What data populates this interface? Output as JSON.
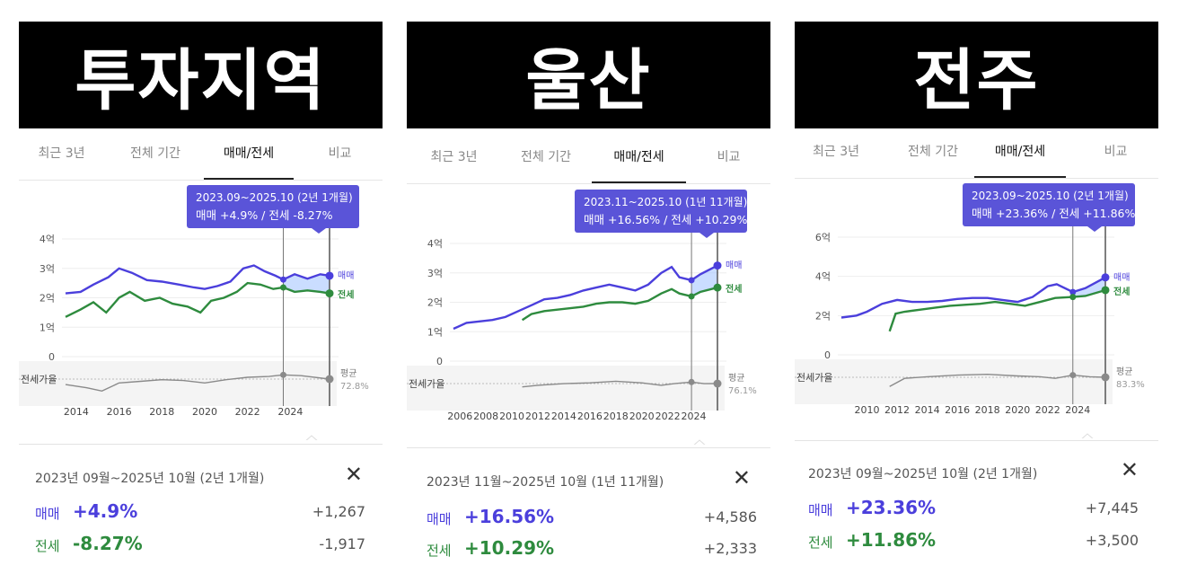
{
  "tabs": [
    "최근 3년",
    "전체 기간",
    "매매/전세",
    "비교"
  ],
  "active_tab": 2,
  "panels": [
    {
      "banner": "투자지역",
      "tooltip_line1": "2023.09~2025.10 (2년 1개월)",
      "tooltip_line2": "매매 +4.9%  /  전세 -8.27%",
      "summary": {
        "period": "2023년 09월~2025년 10월 (2년 1개월)",
        "sale_label": "매매",
        "sale_pct": "+4.9%",
        "sale_amt": "+1,267",
        "jeonse_label": "전세",
        "jeonse_pct": "-8.27%",
        "jeonse_amt": "-1,917"
      },
      "chart_data": {
        "type": "line",
        "xlabel": "",
        "ylabel": "",
        "x_ticks": [
          "2014",
          "2016",
          "2018",
          "2020",
          "2022",
          "2024"
        ],
        "y_ticks": [
          "4억",
          "3억",
          "2억",
          "1억",
          "0"
        ],
        "ylim": [
          0,
          4
        ],
        "x_range": [
          2013.5,
          2025.83
        ],
        "series": [
          {
            "name": "매매",
            "color": "#4b3fdc",
            "points": [
              [
                2013.5,
                2.15
              ],
              [
                2014.2,
                2.2
              ],
              [
                2014.8,
                2.45
              ],
              [
                2015.5,
                2.7
              ],
              [
                2016.0,
                3.0
              ],
              [
                2016.6,
                2.85
              ],
              [
                2017.3,
                2.6
              ],
              [
                2018.0,
                2.55
              ],
              [
                2018.8,
                2.45
              ],
              [
                2019.5,
                2.35
              ],
              [
                2020.0,
                2.3
              ],
              [
                2020.6,
                2.4
              ],
              [
                2021.2,
                2.55
              ],
              [
                2021.8,
                3.0
              ],
              [
                2022.3,
                3.1
              ],
              [
                2022.8,
                2.9
              ],
              [
                2023.3,
                2.75
              ],
              [
                2023.67,
                2.62
              ],
              [
                2024.2,
                2.8
              ],
              [
                2024.8,
                2.65
              ],
              [
                2025.4,
                2.8
              ],
              [
                2025.83,
                2.75
              ]
            ]
          },
          {
            "name": "전세",
            "color": "#2e8b3e",
            "points": [
              [
                2013.5,
                1.35
              ],
              [
                2014.2,
                1.6
              ],
              [
                2014.8,
                1.85
              ],
              [
                2015.4,
                1.5
              ],
              [
                2016.0,
                2.0
              ],
              [
                2016.5,
                2.2
              ],
              [
                2017.2,
                1.9
              ],
              [
                2017.9,
                2.0
              ],
              [
                2018.5,
                1.8
              ],
              [
                2019.2,
                1.7
              ],
              [
                2019.8,
                1.5
              ],
              [
                2020.3,
                1.9
              ],
              [
                2020.9,
                2.0
              ],
              [
                2021.5,
                2.2
              ],
              [
                2022.0,
                2.5
              ],
              [
                2022.6,
                2.45
              ],
              [
                2023.2,
                2.3
              ],
              [
                2023.67,
                2.35
              ],
              [
                2024.2,
                2.2
              ],
              [
                2024.8,
                2.25
              ],
              [
                2025.4,
                2.2
              ],
              [
                2025.83,
                2.15
              ]
            ]
          },
          {
            "name": "전세가율",
            "points": [
              [
                2013.5,
                66
              ],
              [
                2014.5,
                62
              ],
              [
                2015.2,
                58
              ],
              [
                2016.0,
                68
              ],
              [
                2017.0,
                70
              ],
              [
                2018.0,
                72
              ],
              [
                2019.0,
                71
              ],
              [
                2020.0,
                68
              ],
              [
                2021.0,
                72
              ],
              [
                2022.0,
                75
              ],
              [
                2023.0,
                76
              ],
              [
                2023.67,
                78
              ],
              [
                2024.5,
                77
              ],
              [
                2025.83,
                72.8
              ]
            ]
          }
        ],
        "ratio_label": "전세가율",
        "avg_label": "평균",
        "avg_value": "72.8%",
        "selection": [
          2023.67,
          2025.83
        ],
        "end_labels": [
          "매매",
          "전세"
        ]
      }
    },
    {
      "banner": "울산",
      "tooltip_line1": "2023.11~2025.10 (1년 11개월)",
      "tooltip_line2": "매매 +16.56%  /  전세 +10.29%",
      "summary": {
        "period": "2023년 11월~2025년 10월 (1년 11개월)",
        "sale_label": "매매",
        "sale_pct": "+16.56%",
        "sale_amt": "+4,586",
        "jeonse_label": "전세",
        "jeonse_pct": "+10.29%",
        "jeonse_amt": "+2,333"
      },
      "chart_data": {
        "type": "line",
        "xlabel": "",
        "ylabel": "",
        "x_ticks": [
          "2006",
          "2008",
          "2010",
          "2012",
          "2014",
          "2016",
          "2018",
          "2020",
          "2022",
          "2024"
        ],
        "y_ticks": [
          "4억",
          "3억",
          "2억",
          "1억",
          "0"
        ],
        "ylim": [
          0,
          4
        ],
        "x_range": [
          2005.5,
          2025.83
        ],
        "series": [
          {
            "name": "매매",
            "color": "#4b3fdc",
            "points": [
              [
                2005.5,
                1.1
              ],
              [
                2006.5,
                1.3
              ],
              [
                2007.5,
                1.35
              ],
              [
                2008.5,
                1.4
              ],
              [
                2009.5,
                1.5
              ],
              [
                2010.5,
                1.7
              ],
              [
                2011.5,
                1.9
              ],
              [
                2012.5,
                2.1
              ],
              [
                2013.5,
                2.15
              ],
              [
                2014.5,
                2.25
              ],
              [
                2015.5,
                2.4
              ],
              [
                2016.5,
                2.5
              ],
              [
                2017.5,
                2.6
              ],
              [
                2018.5,
                2.5
              ],
              [
                2019.5,
                2.4
              ],
              [
                2020.5,
                2.6
              ],
              [
                2021.5,
                3.0
              ],
              [
                2022.3,
                3.2
              ],
              [
                2022.9,
                2.85
              ],
              [
                2023.83,
                2.75
              ],
              [
                2024.5,
                2.95
              ],
              [
                2025.83,
                3.25
              ]
            ]
          },
          {
            "name": "전세",
            "color": "#2e8b3e",
            "points": [
              [
                2010.8,
                1.4
              ],
              [
                2011.5,
                1.6
              ],
              [
                2012.5,
                1.7
              ],
              [
                2013.5,
                1.75
              ],
              [
                2014.5,
                1.8
              ],
              [
                2015.5,
                1.85
              ],
              [
                2016.5,
                1.95
              ],
              [
                2017.5,
                2.0
              ],
              [
                2018.5,
                2.0
              ],
              [
                2019.5,
                1.95
              ],
              [
                2020.5,
                2.05
              ],
              [
                2021.5,
                2.3
              ],
              [
                2022.3,
                2.45
              ],
              [
                2022.9,
                2.3
              ],
              [
                2023.83,
                2.2
              ],
              [
                2024.5,
                2.35
              ],
              [
                2025.83,
                2.5
              ]
            ]
          },
          {
            "name": "전세가율",
            "points": [
              [
                2010.8,
                72
              ],
              [
                2012.0,
                74
              ],
              [
                2014.0,
                76
              ],
              [
                2016.0,
                77
              ],
              [
                2018.0,
                79
              ],
              [
                2020.0,
                77
              ],
              [
                2021.5,
                74
              ],
              [
                2022.5,
                76
              ],
              [
                2023.83,
                78
              ],
              [
                2024.8,
                76
              ],
              [
                2025.83,
                76.1
              ]
            ]
          }
        ],
        "ratio_label": "전세가율",
        "avg_label": "평균",
        "avg_value": "76.1%",
        "selection": [
          2023.83,
          2025.83
        ],
        "end_labels": [
          "매매",
          "전세"
        ]
      }
    },
    {
      "banner": "전주",
      "tooltip_line1": "2023.09~2025.10 (2년 1개월)",
      "tooltip_line2": "매매 +23.36%  /  전세 +11.86%",
      "summary": {
        "period": "2023년 09월~2025년 10월 (2년 1개월)",
        "sale_label": "매매",
        "sale_pct": "+23.36%",
        "sale_amt": "+7,445",
        "jeonse_label": "전세",
        "jeonse_pct": "+11.86%",
        "jeonse_amt": "+3,500"
      },
      "chart_data": {
        "type": "line",
        "xlabel": "",
        "ylabel": "",
        "x_ticks": [
          "2010",
          "2012",
          "2014",
          "2016",
          "2018",
          "2020",
          "2022",
          "2024"
        ],
        "y_ticks": [
          "6억",
          "4억",
          "2억",
          "0"
        ],
        "ylim": [
          0,
          6
        ],
        "x_range": [
          2008.3,
          2025.83
        ],
        "series": [
          {
            "name": "매매",
            "color": "#4b3fdc",
            "points": [
              [
                2008.3,
                1.9
              ],
              [
                2009.3,
                2.0
              ],
              [
                2010.0,
                2.2
              ],
              [
                2011.0,
                2.6
              ],
              [
                2012.0,
                2.8
              ],
              [
                2013.0,
                2.7
              ],
              [
                2014.0,
                2.7
              ],
              [
                2015.0,
                2.75
              ],
              [
                2016.0,
                2.85
              ],
              [
                2017.0,
                2.9
              ],
              [
                2018.0,
                2.9
              ],
              [
                2019.0,
                2.8
              ],
              [
                2020.0,
                2.7
              ],
              [
                2021.0,
                2.95
              ],
              [
                2022.0,
                3.5
              ],
              [
                2022.6,
                3.6
              ],
              [
                2023.67,
                3.2
              ],
              [
                2024.5,
                3.4
              ],
              [
                2025.83,
                3.95
              ]
            ]
          },
          {
            "name": "전세",
            "color": "#2e8b3e",
            "points": [
              [
                2011.5,
                1.2
              ],
              [
                2011.9,
                2.1
              ],
              [
                2012.5,
                2.2
              ],
              [
                2013.5,
                2.3
              ],
              [
                2014.5,
                2.4
              ],
              [
                2015.5,
                2.5
              ],
              [
                2016.5,
                2.55
              ],
              [
                2017.5,
                2.6
              ],
              [
                2018.5,
                2.7
              ],
              [
                2019.5,
                2.6
              ],
              [
                2020.5,
                2.5
              ],
              [
                2021.5,
                2.7
              ],
              [
                2022.5,
                2.9
              ],
              [
                2023.67,
                2.95
              ],
              [
                2024.5,
                3.0
              ],
              [
                2025.83,
                3.3
              ]
            ]
          },
          {
            "name": "전세가율",
            "points": [
              [
                2011.5,
                72
              ],
              [
                2012.5,
                82
              ],
              [
                2014.0,
                84
              ],
              [
                2016.0,
                86
              ],
              [
                2018.0,
                87
              ],
              [
                2020.0,
                85
              ],
              [
                2021.5,
                84
              ],
              [
                2022.5,
                82
              ],
              [
                2023.67,
                86
              ],
              [
                2024.8,
                84
              ],
              [
                2025.83,
                83.3
              ]
            ]
          }
        ],
        "ratio_label": "전세가율",
        "avg_label": "평균",
        "avg_value": "83.3%",
        "selection": [
          2023.67,
          2025.83
        ],
        "end_labels": [
          "매매",
          "전세"
        ]
      }
    }
  ]
}
